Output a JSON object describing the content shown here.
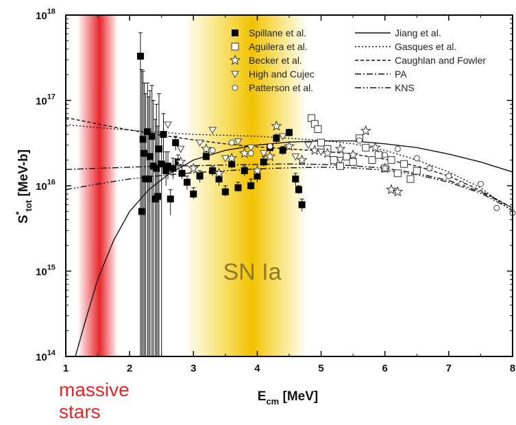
{
  "chart_data": {
    "type": "scatter",
    "title": "",
    "xlabel": "E",
    "xlabel_sub": "cm",
    "xlabel_unit": " [MeV]",
    "ylabel_main": "S",
    "ylabel_sup": "*",
    "ylabel_sub": "tot",
    "ylabel_unit": " [MeV-b]",
    "xlim": [
      1,
      8
    ],
    "ylim_exp": [
      14,
      18
    ],
    "log_y": true,
    "grid": false,
    "legend_position": "top",
    "x_ticks": [
      "1",
      "2",
      "3",
      "4",
      "5",
      "6",
      "7",
      "8"
    ],
    "y_ticks": [
      {
        "base": "10",
        "exp": "14"
      },
      {
        "base": "10",
        "exp": "15"
      },
      {
        "base": "10",
        "exp": "16"
      },
      {
        "base": "10",
        "exp": "17"
      },
      {
        "base": "10",
        "exp": "18"
      }
    ],
    "bands": [
      {
        "label": "massive stars",
        "label_lines": [
          "massive",
          "stars"
        ],
        "x_range": [
          1.2,
          1.8
        ],
        "color": "#e8262b"
      },
      {
        "label": "SN Ia",
        "x_range": [
          2.9,
          4.75
        ],
        "color": "#f2c200"
      }
    ],
    "data_series": [
      {
        "name": "Spillane et al.",
        "marker": "filled-square",
        "points": [
          [
            2.17,
            3.3e+17,
            6.2e+17,
            100000000000000.0
          ],
          [
            2.19,
            5000000000000000.0,
            2.3e+17,
            100000000000000.0
          ],
          [
            2.21,
            3.5e+16,
            2.2e+17,
            100000000000000.0
          ],
          [
            2.23,
            2.4e+16,
            1.6e+17,
            100000000000000.0
          ],
          [
            2.25,
            1.2e+16,
            1.2e+17,
            100000000000000.0
          ],
          [
            2.28,
            4.3e+16,
            1.6e+17,
            100000000000000.0
          ],
          [
            2.3,
            1.2e+16,
            1.1e+17,
            100000000000000.0
          ],
          [
            2.32,
            2.2e+16,
            1.3e+17,
            100000000000000.0
          ],
          [
            2.35,
            3.8e+16,
            1.5e+17,
            100000000000000.0
          ],
          [
            2.37,
            1.7e+16,
            1e+17,
            100000000000000.0
          ],
          [
            2.4,
            7000000000000000.0,
            6e+16,
            100000000000000.0
          ],
          [
            2.42,
            1.6e+16,
            9e+16,
            100000000000000.0
          ],
          [
            2.44,
            7500000000000000.0,
            5e+16,
            100000000000000.0
          ],
          [
            2.46,
            2.7e+16,
            1.2e+17,
            100000000000000.0
          ],
          [
            2.5,
            1.8e+16,
            4e+16,
            100000000000000.0
          ],
          [
            2.53,
            4e+16,
            7e+16,
            2e+16
          ],
          [
            2.57,
            1.5e+16,
            2.5e+16,
            1e+16
          ],
          [
            2.6,
            1.7e+16,
            2.5e+16,
            1.2e+16
          ],
          [
            2.64,
            7000000000000000.0,
            9000000000000000.0,
            4500000000000000.0
          ],
          [
            2.68,
            1.6e+16,
            2.1e+16,
            1.2e+16
          ],
          [
            2.72,
            3.2e+16,
            3.8e+16,
            2.6e+16
          ],
          [
            2.76,
            1.9e+16,
            2.3e+16,
            1.6e+16
          ],
          [
            2.82,
            1.4e+16,
            1.7e+16,
            1.2e+16
          ],
          [
            2.9,
            1.1e+16,
            1.3e+16,
            9000000000000000.0
          ],
          [
            3.0,
            8000000000000000.0,
            9500000000000000.0,
            7000000000000000.0
          ],
          [
            3.1,
            1.3e+16,
            1.5e+16,
            1.1e+16
          ],
          [
            3.2,
            2.2e+16,
            2.5e+16,
            2e+16
          ],
          [
            3.3,
            1.5e+16,
            1.7e+16,
            1.3e+16
          ],
          [
            3.4,
            1.2e+16,
            1.4e+16,
            1e+16
          ],
          [
            3.5,
            8500000000000000.0,
            1e+16,
            7500000000000000.0
          ],
          [
            3.6,
            1.8e+16,
            2e+16,
            1.6e+16
          ],
          [
            3.7,
            9500000000000000.0,
            1.1e+16,
            8500000000000000.0
          ],
          [
            3.8,
            1.5e+16,
            1.7e+16,
            1.3e+16
          ],
          [
            3.9,
            1e+16,
            1.2e+16,
            9000000000000000.0
          ],
          [
            4.0,
            1.3e+16,
            1.5e+16,
            1.1e+16
          ],
          [
            4.1,
            1.9e+16,
            2.2e+16,
            1.7e+16
          ],
          [
            4.2,
            2.8e+16,
            3.1e+16,
            2.5e+16
          ],
          [
            4.3,
            3.6e+16,
            4e+16,
            3.2e+16
          ],
          [
            4.4,
            2.6e+16,
            2.9e+16,
            2.3e+16
          ],
          [
            4.5,
            4.2e+16,
            4.6e+16,
            3.8e+16
          ],
          [
            4.6,
            1.2e+16,
            1.4e+16,
            1e+16
          ],
          [
            4.65,
            9000000000000000.0,
            1e+16,
            8000000000000000.0
          ],
          [
            4.7,
            6000000000000000.0,
            7000000000000000.0,
            5000000000000000.0
          ]
        ]
      },
      {
        "name": "Aguilera et al.",
        "marker": "open-square",
        "points": [
          [
            4.85,
            6.2e+16
          ],
          [
            4.9,
            5.3e+16
          ],
          [
            4.95,
            4.6e+16
          ],
          [
            5.0,
            3.2e+16
          ],
          [
            5.1,
            2.7e+16
          ],
          [
            5.2,
            2e+16
          ],
          [
            5.3,
            1.7e+16
          ],
          [
            5.4,
            2.2e+16
          ],
          [
            5.5,
            1.9e+16
          ],
          [
            5.6,
            3.6e+16
          ],
          [
            5.7,
            2.8e+16
          ],
          [
            5.8,
            2e+16
          ],
          [
            5.9,
            2.3e+16
          ],
          [
            6.0,
            1.6e+16
          ],
          [
            6.1,
            2e+16
          ],
          [
            6.2,
            1.4e+16
          ],
          [
            6.3,
            1.8e+16
          ],
          [
            6.4,
            1.2e+16
          ],
          [
            6.5,
            1.5e+16
          ]
        ]
      },
      {
        "name": "Becker et al.",
        "marker": "star",
        "points": [
          [
            2.8,
            1.9e+16
          ],
          [
            3.0,
            1.6e+16
          ],
          [
            3.2,
            2.7e+16
          ],
          [
            3.4,
            1.4e+16
          ],
          [
            3.6,
            2.1e+16
          ],
          [
            3.8,
            2.4e+16
          ],
          [
            4.0,
            1.5e+16
          ],
          [
            4.2,
            2.2e+16
          ],
          [
            4.3,
            5e+16
          ],
          [
            4.5,
            2.9e+16
          ],
          [
            4.7,
            2e+16
          ],
          [
            4.9,
            2.6e+16
          ],
          [
            5.1,
            2.4e+16
          ],
          [
            5.3,
            2.7e+16
          ],
          [
            5.5,
            2.3e+16
          ],
          [
            5.7,
            4.4e+16
          ],
          [
            5.85,
            2.8e+16
          ],
          [
            6.0,
            1.6e+16
          ],
          [
            6.1,
            9000000000000000.0
          ],
          [
            6.2,
            8500000000000000.0
          ]
        ]
      },
      {
        "name": "High and Cujec",
        "marker": "down-triangle",
        "points": [
          [
            2.6,
            5.2e+16
          ],
          [
            2.8,
            2.7e+16
          ],
          [
            3.1,
            3.2e+16
          ],
          [
            3.3,
            4.5e+16
          ],
          [
            3.5,
            2.1e+16
          ],
          [
            3.7,
            3.3e+16
          ],
          [
            3.9,
            2.8e+16
          ],
          [
            4.1,
            2.4e+16
          ],
          [
            4.4,
            3.8e+16
          ],
          [
            4.6,
            2.2e+16
          ],
          [
            4.8,
            3e+16
          ],
          [
            5.0,
            2.5e+16
          ],
          [
            5.3,
            2e+16
          ]
        ]
      },
      {
        "name": "Patterson et al.",
        "marker": "circle",
        "points": [
          [
            3.3,
            2.6e+16
          ],
          [
            3.6,
            3.2e+16
          ],
          [
            3.9,
            2.4e+16
          ],
          [
            4.2,
            2.9e+16
          ],
          [
            5.6,
            3.4e+16
          ],
          [
            6.0,
            2.3e+16
          ],
          [
            6.2,
            2.7e+16
          ],
          [
            6.5,
            2.1e+16
          ],
          [
            6.7,
            1.6e+16
          ],
          [
            7.0,
            1.3e+16
          ],
          [
            7.2,
            1.05e+16
          ],
          [
            7.5,
            1.05e+16
          ],
          [
            7.75,
            5500000000000000.0
          ],
          [
            8.0,
            4800000000000000.0
          ]
        ]
      }
    ],
    "curves": [
      {
        "name": "Jiang et al.",
        "dash": "",
        "points": [
          [
            1.15,
            100000000000000.0
          ],
          [
            1.3,
            250000000000000.0
          ],
          [
            1.5,
            800000000000000.0
          ],
          [
            1.75,
            2300000000000000.0
          ],
          [
            2.0,
            5000000000000000.0
          ],
          [
            2.3,
            9000000000000000.0
          ],
          [
            2.6,
            1.35e+16
          ],
          [
            3.0,
            2e+16
          ],
          [
            3.5,
            2.6e+16
          ],
          [
            4.0,
            3e+16
          ],
          [
            4.5,
            3.25e+16
          ],
          [
            5.0,
            3.35e+16
          ],
          [
            5.5,
            3.35e+16
          ],
          [
            6.0,
            3.1e+16
          ],
          [
            6.5,
            2.8e+16
          ],
          [
            7.0,
            2.35e+16
          ],
          [
            7.5,
            1.9e+16
          ],
          [
            8.0,
            1.45e+16
          ]
        ]
      },
      {
        "name": "Gasques et al.",
        "dash": "2,3",
        "points": [
          [
            1.0,
            5.2e+16
          ],
          [
            1.5,
            4.8e+16
          ],
          [
            2.0,
            4.5e+16
          ],
          [
            2.5,
            4.2e+16
          ],
          [
            3.0,
            4e+16
          ],
          [
            3.5,
            3.9e+16
          ],
          [
            4.0,
            3.8e+16
          ],
          [
            4.5,
            3.6e+16
          ],
          [
            5.0,
            3.4e+16
          ],
          [
            5.5,
            3.1e+16
          ],
          [
            6.0,
            2.6e+16
          ],
          [
            6.5,
            2e+16
          ],
          [
            7.0,
            1.45e+16
          ],
          [
            7.5,
            9500000000000000.0
          ],
          [
            8.0,
            5000000000000000.0
          ]
        ]
      },
      {
        "name": "Caughlan and Fowler",
        "dash": "5,3",
        "points": [
          [
            1.0,
            6.3e+16
          ],
          [
            1.5,
            5.3e+16
          ],
          [
            2.0,
            4.5e+16
          ],
          [
            2.5,
            3.9e+16
          ],
          [
            3.0,
            3.45e+16
          ],
          [
            3.5,
            3.1e+16
          ],
          [
            4.0,
            2.85e+16
          ],
          [
            4.5,
            2.7e+16
          ],
          [
            5.0,
            2.55e+16
          ],
          [
            5.5,
            2.35e+16
          ],
          [
            6.0,
            2.05e+16
          ],
          [
            6.5,
            1.7e+16
          ],
          [
            7.0,
            1.3e+16
          ],
          [
            7.5,
            8800000000000000.0
          ],
          [
            8.0,
            5500000000000000.0
          ]
        ]
      },
      {
        "name": "PA",
        "dash": "9,3,2,3",
        "points": [
          [
            1.0,
            1.55e+16
          ],
          [
            1.5,
            1.6e+16
          ],
          [
            2.0,
            1.65e+16
          ],
          [
            2.5,
            1.7e+16
          ],
          [
            3.0,
            1.72e+16
          ],
          [
            3.5,
            1.75e+16
          ],
          [
            4.0,
            1.78e+16
          ],
          [
            4.5,
            1.8e+16
          ],
          [
            5.0,
            1.78e+16
          ],
          [
            5.5,
            1.72e+16
          ],
          [
            6.0,
            1.6e+16
          ],
          [
            6.5,
            1.4e+16
          ],
          [
            7.0,
            1.15e+16
          ],
          [
            7.5,
            8500000000000000.0
          ],
          [
            8.0,
            5500000000000000.0
          ]
        ]
      },
      {
        "name": "KNS",
        "dash": "9,3,2,3,2,3",
        "points": [
          [
            1.0,
            9000000000000000.0
          ],
          [
            1.5,
            1.05e+16
          ],
          [
            2.0,
            1.2e+16
          ],
          [
            2.5,
            1.32e+16
          ],
          [
            3.0,
            1.42e+16
          ],
          [
            3.5,
            1.5e+16
          ],
          [
            4.0,
            1.58e+16
          ],
          [
            4.5,
            1.62e+16
          ],
          [
            5.0,
            1.65e+16
          ],
          [
            5.5,
            1.62e+16
          ],
          [
            6.0,
            1.52e+16
          ],
          [
            6.5,
            1.35e+16
          ],
          [
            7.0,
            1.1e+16
          ],
          [
            7.5,
            8200000000000000.0
          ],
          [
            8.0,
            5200000000000000.0
          ]
        ]
      }
    ]
  }
}
